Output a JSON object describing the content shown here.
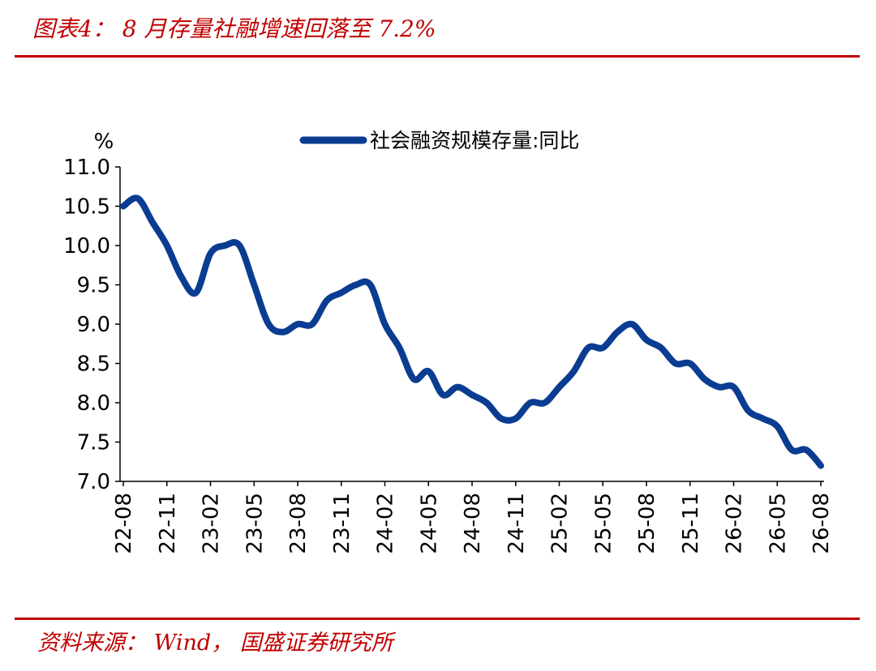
{
  "header": {
    "title": "图表4： 8 月存量社融增速回落至 7.2%"
  },
  "footer": {
    "source": "资料来源： Wind， 国盛证券研究所"
  },
  "chart_data": {
    "type": "line",
    "ylabel": "%",
    "ylim": [
      7.0,
      11.0
    ],
    "yticks": [
      "11.0",
      "10.5",
      "10.0",
      "9.5",
      "9.0",
      "8.5",
      "8.0",
      "7.5",
      "7.0"
    ],
    "xticks": [
      "22-08",
      "22-11",
      "23-02",
      "23-05",
      "23-08",
      "23-11",
      "24-02",
      "24-05",
      "24-08",
      "24-11",
      "25-02",
      "25-05",
      "25-08",
      "25-11",
      "26-02",
      "26-05",
      "26-08"
    ],
    "legend": "top-center",
    "grid": false,
    "x": [
      "22-08",
      "22-09",
      "22-10",
      "22-11",
      "22-12",
      "23-01",
      "23-02",
      "23-03",
      "23-04",
      "23-05",
      "23-06",
      "23-07",
      "23-08",
      "23-09",
      "23-10",
      "23-11",
      "23-12",
      "24-01",
      "24-02",
      "24-03",
      "24-04",
      "24-05",
      "24-06",
      "24-07",
      "24-08",
      "24-09",
      "24-10",
      "24-11",
      "24-12",
      "25-01",
      "25-02",
      "25-03",
      "25-04",
      "25-05",
      "25-06",
      "25-07",
      "25-08",
      "25-09",
      "25-10",
      "25-11",
      "25-12",
      "26-01",
      "26-02",
      "26-03",
      "26-04",
      "26-05",
      "26-06",
      "26-07",
      "26-08"
    ],
    "series": [
      {
        "name": "社会融资规模存量:同比",
        "color": "#0a3d91",
        "values": [
          10.5,
          10.6,
          10.3,
          10.0,
          9.6,
          9.4,
          9.9,
          10.0,
          10.0,
          9.5,
          9.0,
          8.9,
          9.0,
          9.0,
          9.3,
          9.4,
          9.5,
          9.5,
          9.0,
          8.7,
          8.3,
          8.4,
          8.1,
          8.2,
          8.1,
          8.0,
          7.8,
          7.8,
          8.0,
          8.0,
          8.2,
          8.4,
          8.7,
          8.7,
          8.9,
          9.0,
          8.8,
          8.7,
          8.5,
          8.5,
          8.3,
          8.2,
          8.2,
          7.9,
          7.8,
          7.7,
          7.4,
          7.4,
          7.2
        ]
      }
    ]
  }
}
